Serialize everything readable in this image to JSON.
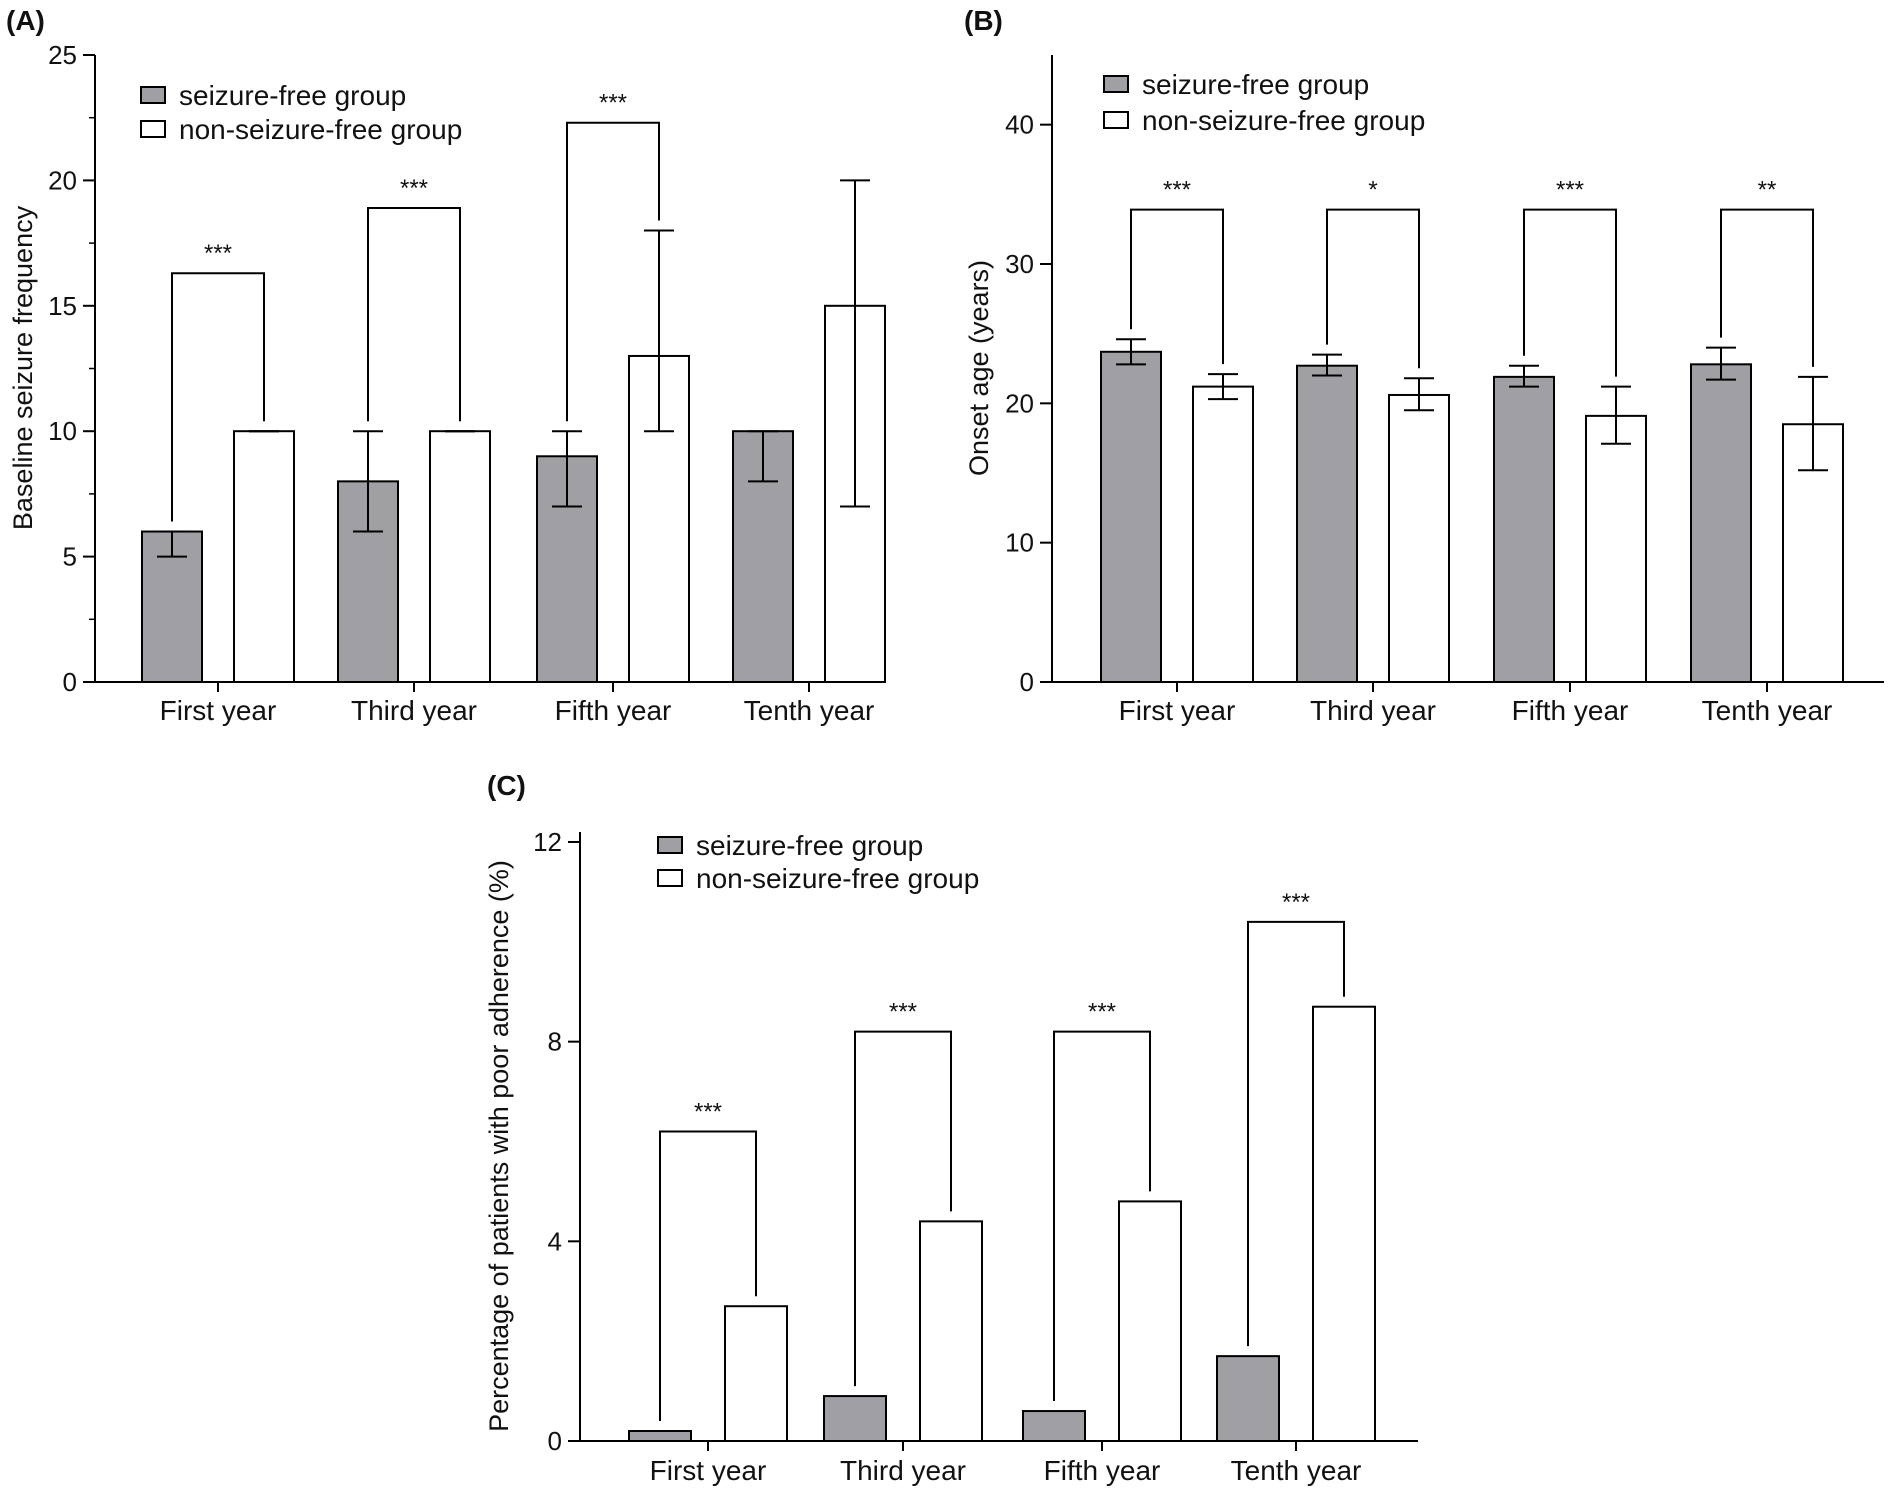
{
  "chart_data": [
    {
      "panel": "(A)",
      "type": "bar",
      "ylabel": "Baseline seizure frequency",
      "xlabel": "",
      "ylim": [
        0,
        25
      ],
      "yticks": [
        0,
        5,
        10,
        15,
        20,
        25
      ],
      "legend_position": "top-left",
      "categories": [
        "First year",
        "Third year",
        "Fifth year",
        "Tenth year"
      ],
      "series": [
        {
          "name": "seizure-free group",
          "color": "#a0a0a4",
          "values": [
            6,
            8,
            9,
            10
          ],
          "err_low": [
            5,
            6,
            7,
            8
          ],
          "err_high": [
            6,
            10,
            10,
            10
          ]
        },
        {
          "name": "non-seizure-free group",
          "color": "#ffffff",
          "values": [
            10,
            10,
            13,
            15
          ],
          "err_low": [
            10,
            10,
            10,
            7
          ],
          "err_high": [
            10,
            10,
            18,
            20
          ]
        }
      ],
      "significance": [
        {
          "category": 0,
          "label": "***",
          "level": 16.3
        },
        {
          "category": 1,
          "label": "***",
          "level": 18.9
        },
        {
          "category": 2,
          "label": "***",
          "level": 22.3
        }
      ]
    },
    {
      "panel": "(B)",
      "type": "bar",
      "ylabel": "Onset age (years)",
      "xlabel": "",
      "ylim": [
        0,
        45
      ],
      "yticks": [
        0,
        10,
        20,
        30,
        40
      ],
      "legend_position": "top-left",
      "categories": [
        "First year",
        "Third year",
        "Fifth year",
        "Tenth year"
      ],
      "series": [
        {
          "name": "seizure-free group",
          "color": "#a0a0a4",
          "values": [
            23.7,
            22.7,
            21.9,
            22.8
          ],
          "err_low": [
            22.8,
            22.0,
            21.2,
            21.7
          ],
          "err_high": [
            24.6,
            23.5,
            22.7,
            24.0
          ]
        },
        {
          "name": "non-seizure-free group",
          "color": "#ffffff",
          "values": [
            21.2,
            20.6,
            19.1,
            18.5
          ],
          "err_low": [
            20.3,
            19.5,
            17.1,
            15.2
          ],
          "err_high": [
            22.1,
            21.8,
            21.2,
            21.9
          ]
        }
      ],
      "significance": [
        {
          "category": 0,
          "label": "***",
          "level": 33.9
        },
        {
          "category": 1,
          "label": "*",
          "level": 33.9
        },
        {
          "category": 2,
          "label": "***",
          "level": 33.9
        },
        {
          "category": 3,
          "label": "**",
          "level": 33.9
        }
      ]
    },
    {
      "panel": "(C)",
      "type": "bar",
      "ylabel": "Percentage of patients with poor adherence (%)",
      "xlabel": "",
      "ylim": [
        0,
        12.2
      ],
      "yticks": [
        0,
        4,
        8,
        12
      ],
      "legend_position": "top-left",
      "categories": [
        "First year",
        "Third year",
        "Fifth year",
        "Tenth year"
      ],
      "series": [
        {
          "name": "seizure-free group",
          "color": "#a0a0a4",
          "values": [
            0.2,
            0.9,
            0.6,
            1.7
          ]
        },
        {
          "name": "non-seizure-free group",
          "color": "#ffffff",
          "values": [
            2.7,
            4.4,
            4.8,
            8.7
          ]
        }
      ],
      "significance": [
        {
          "category": 0,
          "label": "***",
          "level": 6.2
        },
        {
          "category": 1,
          "label": "***",
          "level": 8.2
        },
        {
          "category": 2,
          "label": "***",
          "level": 8.2
        },
        {
          "category": 3,
          "label": "***",
          "level": 10.4
        }
      ]
    }
  ]
}
